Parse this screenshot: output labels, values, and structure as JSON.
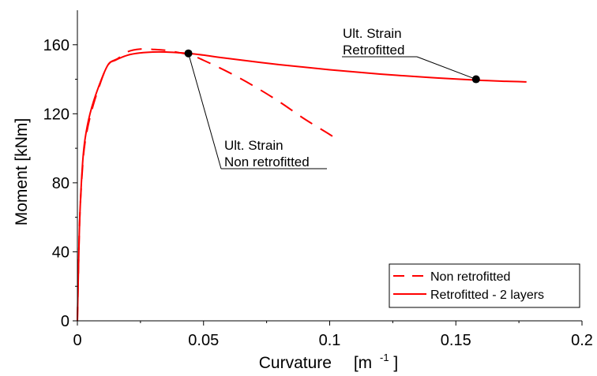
{
  "chart_data": {
    "type": "line",
    "xlabel": "Curvature",
    "xlabel_unit_prefix": "[m",
    "xlabel_unit_sup": "-1",
    "xlabel_unit_suffix": "]",
    "ylabel": "Moment   [kNm]",
    "xlim": [
      0,
      0.2
    ],
    "ylim": [
      0,
      180
    ],
    "x_ticks": [
      0,
      0.05,
      0.1,
      0.15,
      0.2
    ],
    "x_tick_labels": [
      "0",
      "0.05",
      "0.1",
      "0.15",
      "0.2"
    ],
    "y_ticks": [
      0,
      40,
      80,
      120,
      160
    ],
    "y_tick_labels": [
      "0",
      "40",
      "80",
      "120",
      "160"
    ],
    "grid": false,
    "legend_position": "bottom-right",
    "colors": {
      "series": "#ff0000",
      "axis": "#000000"
    },
    "series": [
      {
        "name": "Non retrofitted",
        "style": "dashed",
        "x": [
          0,
          0.0005,
          0.001,
          0.002,
          0.003,
          0.005,
          0.008,
          0.012,
          0.016,
          0.02,
          0.025,
          0.03,
          0.035,
          0.04,
          0.045,
          0.05,
          0.06,
          0.07,
          0.08,
          0.09,
          0.1,
          0.103
        ],
        "y": [
          0,
          35,
          62,
          88,
          103,
          118,
          133,
          148,
          152,
          156,
          157.5,
          157.3,
          156.8,
          155.5,
          154,
          151,
          144,
          136,
          127,
          117,
          108,
          105
        ]
      },
      {
        "name": "Retrofitted - 2 layers",
        "style": "solid",
        "x": [
          0,
          0.0005,
          0.001,
          0.002,
          0.003,
          0.005,
          0.008,
          0.012,
          0.015,
          0.02,
          0.025,
          0.03,
          0.035,
          0.04,
          0.044,
          0.05,
          0.06,
          0.08,
          0.1,
          0.12,
          0.14,
          0.158,
          0.17,
          0.178
        ],
        "y": [
          0,
          35,
          62,
          90,
          105,
          120,
          134,
          148,
          151,
          154,
          155.3,
          155.8,
          155.8,
          155.4,
          155,
          154,
          152,
          148.5,
          145.5,
          143,
          141,
          139.5,
          138.8,
          138.5
        ]
      }
    ],
    "markers": [
      {
        "x": 0.044,
        "y": 155,
        "label_line1": "Ult. Strain",
        "label_line2": "Non retrofitted"
      },
      {
        "x": 0.158,
        "y": 140,
        "label_line1": "Ult. Strain",
        "label_line2": "Retrofitted"
      }
    ]
  }
}
